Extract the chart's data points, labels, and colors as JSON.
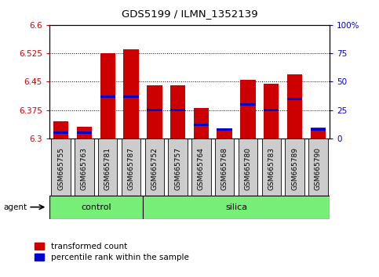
{
  "title": "GDS5199 / ILMN_1352139",
  "samples": [
    "GSM665755",
    "GSM665763",
    "GSM665781",
    "GSM665787",
    "GSM665752",
    "GSM665757",
    "GSM665764",
    "GSM665768",
    "GSM665780",
    "GSM665783",
    "GSM665789",
    "GSM665790"
  ],
  "groups": [
    "control",
    "control",
    "control",
    "control",
    "silica",
    "silica",
    "silica",
    "silica",
    "silica",
    "silica",
    "silica",
    "silica"
  ],
  "transformed_count": [
    6.345,
    6.33,
    6.525,
    6.535,
    6.44,
    6.44,
    6.38,
    6.325,
    6.455,
    6.445,
    6.47,
    6.328
  ],
  "percentile_rank": [
    5,
    5,
    37,
    37,
    25,
    25,
    12,
    8,
    30,
    25,
    35,
    8
  ],
  "ymin": 6.3,
  "ymax": 6.6,
  "yticks": [
    6.3,
    6.375,
    6.45,
    6.525,
    6.6
  ],
  "right_yticks": [
    0,
    25,
    50,
    75,
    100
  ],
  "bar_width": 0.65,
  "red_color": "#cc0000",
  "blue_color": "#0000cc",
  "green_color": "#77ee77",
  "gray_color": "#cccccc",
  "legend_red": "transformed count",
  "legend_blue": "percentile rank within the sample",
  "control_label": "control",
  "silica_label": "silica",
  "agent_label": "agent"
}
